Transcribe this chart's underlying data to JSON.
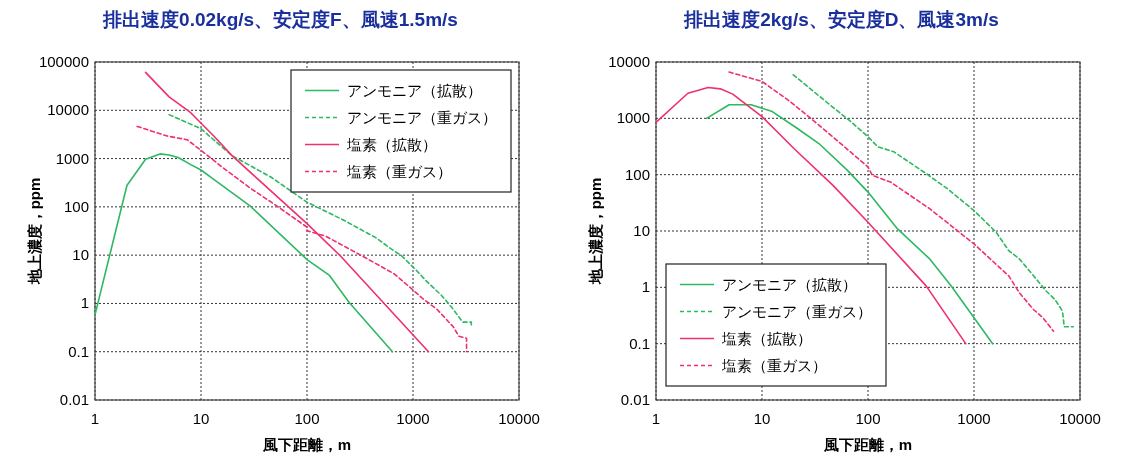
{
  "chart_data": [
    {
      "type": "line",
      "title": "排出速度0.02kg/s、安定度F、風速1.5m/s",
      "xlabel": "風下距離，m",
      "ylabel": "地上濃度，ppm",
      "log": "xy",
      "xlim": [
        1,
        10000
      ],
      "ylim": [
        0.01,
        100000
      ],
      "xticks": [
        1,
        10,
        100,
        1000,
        10000
      ],
      "yticks": [
        0.01,
        0.1,
        1,
        10,
        100,
        1000,
        10000,
        100000
      ],
      "grid": true,
      "legend": "top right",
      "marker": "none",
      "series": [
        {
          "name": "アンモニア（拡散）",
          "color": "#2db862",
          "line_style": "solid",
          "x": [
            1,
            2,
            3,
            4.1,
            5,
            6.1,
            8,
            10,
            13,
            29,
            100,
            163,
            250,
            640
          ],
          "values": [
            0.58,
            277,
            967,
            1250,
            1190,
            1050,
            750,
            580,
            380,
            105,
            8.1,
            3.8,
            1.05,
            0.1
          ]
        },
        {
          "name": "アンモニア（重ガス）",
          "color": "#2db862",
          "line_style": "dashed",
          "x": [
            5,
            10,
            19.6,
            46,
            100,
            222,
            450,
            617,
            780,
            1070,
            1340,
            1850,
            2340,
            2940,
            3550,
            3550
          ],
          "values": [
            8130,
            4140,
            1150,
            410,
            125,
            53,
            22.7,
            13.6,
            9.7,
            4.9,
            2.9,
            1.48,
            0.81,
            0.41,
            0.41,
            0.32
          ]
        },
        {
          "name": "塩素（拡散）",
          "color": "#f0306e",
          "line_style": "solid",
          "x": [
            3,
            5,
            8,
            13.2,
            19.6,
            100,
            206,
            1400
          ],
          "values": [
            61000,
            19000,
            8900,
            2930,
            1150,
            45,
            9.7,
            0.1
          ]
        },
        {
          "name": "塩素（重ガス）",
          "color": "#f0306e",
          "line_style": "dashed",
          "x": [
            2.5,
            4.8,
            7.4,
            10,
            15.5,
            29,
            46,
            100,
            100,
            150,
            329,
            665,
            910,
            1240,
            1690,
            2420,
            2700,
            3200,
            3200
          ],
          "values": [
            4640,
            2930,
            2460,
            1480,
            690,
            246,
            125,
            38,
            32,
            24.7,
            9.7,
            4.1,
            2.27,
            1.25,
            0.75,
            0.32,
            0.21,
            0.19,
            0.1
          ]
        }
      ]
    },
    {
      "type": "line",
      "title": "排出速度2kg/s、安定度D、風速3m/s",
      "xlabel": "風下距離，m",
      "ylabel": "地上濃度，ppm",
      "log": "xy",
      "xlim": [
        1,
        10000
      ],
      "ylim": [
        0.01,
        10000
      ],
      "xticks": [
        1,
        10,
        100,
        1000,
        10000
      ],
      "yticks": [
        0.01,
        0.1,
        1,
        10,
        100,
        1000,
        10000
      ],
      "grid": true,
      "legend": "bottom left",
      "marker": "none",
      "series": [
        {
          "name": "アンモニア（拡散）",
          "color": "#2db862",
          "line_style": "solid",
          "x": [
            3,
            4.9,
            7.9,
            12.5,
            21.6,
            34.4,
            64,
            100,
            190,
            384,
            610,
            1500
          ],
          "values": [
            1000,
            1740,
            1740,
            1320,
            660,
            357,
            119,
            49,
            10.9,
            3.16,
            1.06,
            0.1
          ]
        },
        {
          "name": "アンモニア（重ガス）",
          "color": "#2db862",
          "line_style": "dashed",
          "x": [
            19.7,
            40,
            69,
            100,
            124,
            176,
            355,
            564,
            1000,
            1620,
            2130,
            2680,
            3660,
            4790,
            5800,
            6830,
            7100,
            8650
          ],
          "values": [
            5940,
            1990,
            870,
            471,
            312,
            254,
            104,
            56,
            23,
            9.5,
            4.46,
            3.2,
            1.59,
            0.86,
            0.61,
            0.38,
            0.2,
            0.2
          ]
        },
        {
          "name": "塩素（拡散）",
          "color": "#f0306e",
          "line_style": "solid",
          "x": [
            1,
            2,
            3.1,
            4.05,
            5.3,
            10,
            20,
            47,
            100,
            355,
            836
          ],
          "values": [
            849,
            2790,
            3530,
            3340,
            2690,
            1070,
            291,
            64,
            14.3,
            1.05,
            0.1
          ]
        },
        {
          "name": "塩素（重ガス）",
          "color": "#f0306e",
          "line_style": "dashed",
          "x": [
            4.9,
            10,
            18.4,
            34.4,
            50.6,
            100,
            110,
            163,
            384,
            1000,
            1550,
            2130,
            2680,
            3660,
            4460,
            5630
          ],
          "values": [
            6630,
            4520,
            1990,
            760,
            410,
            137,
            97,
            74,
            24.7,
            5.9,
            2.76,
            1.59,
            0.8,
            0.4,
            0.29,
            0.166
          ]
        }
      ]
    }
  ]
}
